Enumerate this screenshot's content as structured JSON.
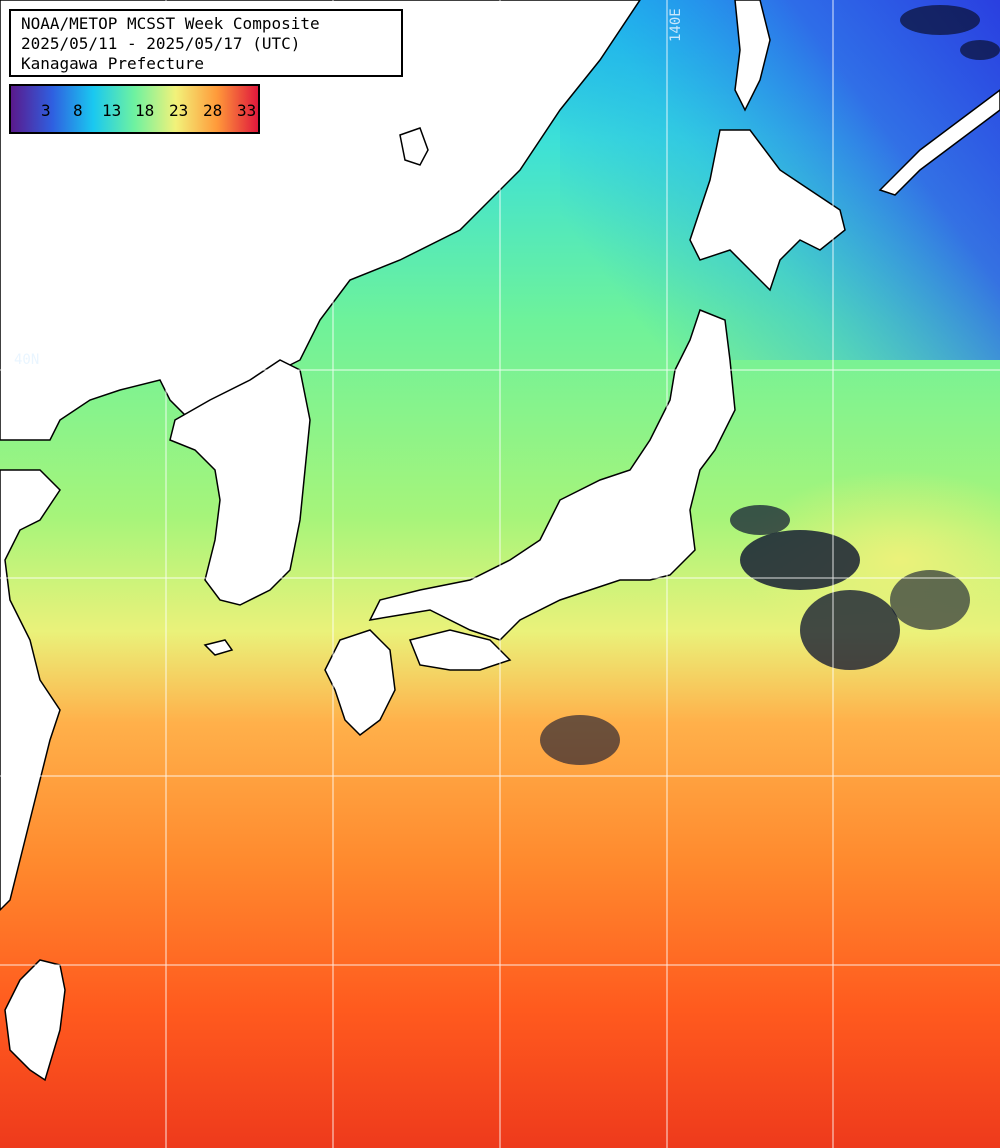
{
  "title": {
    "line1": "NOAA/METOP MCSST Week Composite",
    "line2": "2025/05/11 - 2025/05/17 (UTC)",
    "line3": "Kanagawa Prefecture"
  },
  "legend": {
    "ticks": [
      "3",
      "8",
      "13",
      "18",
      "23",
      "28",
      "33"
    ],
    "colors": [
      "#5a1a8c",
      "#2f5fe0",
      "#1ac8f0",
      "#6ef2a0",
      "#f2f27a",
      "#ff9a3a",
      "#e0183c"
    ]
  },
  "grid_labels": {
    "lon_140": "140E",
    "lat_40": "40N"
  },
  "colors": {
    "land": "#ffffff",
    "coast": "#000000",
    "grid": "#ffffff"
  }
}
